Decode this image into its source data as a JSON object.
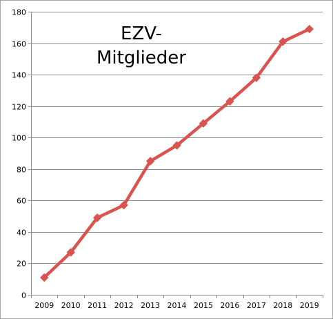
{
  "chart_data": {
    "type": "line",
    "title_lines": [
      "EZV-",
      "Mitglieder"
    ],
    "xlabel": "",
    "ylabel": "",
    "categories": [
      "2009",
      "2010",
      "2011",
      "2012",
      "2013",
      "2014",
      "2015",
      "2016",
      "2017",
      "2018",
      "2019"
    ],
    "series": [
      {
        "values": [
          11,
          27,
          49,
          57,
          85,
          95,
          109,
          123,
          138,
          161,
          169
        ]
      }
    ],
    "ylim": [
      0,
      180
    ],
    "yticks": [
      0,
      20,
      40,
      60,
      80,
      100,
      120,
      140,
      160,
      180
    ],
    "grid": true,
    "legend": "none",
    "line_color": "#d9534f",
    "marker": "diamond"
  }
}
